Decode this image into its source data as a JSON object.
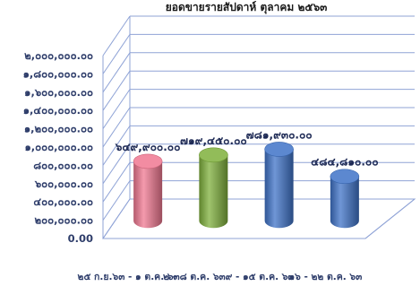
{
  "chart_data": {
    "type": "bar",
    "title": "ยอดขายรายสัปดาห์ ตุลาคม ๒๕๖๓",
    "categories": [
      "๒๕ ก.ย.๖๓ - ๑ ต.ค. ๖๓",
      "๒ - ๘ ต.ค. ๖๓",
      "๙ - ๑๕ ต.ค. ๖๓",
      "๑๖ - ๒๒ ต.ค. ๖๓"
    ],
    "values": [
      649900,
      719450,
      781930,
      484810
    ],
    "value_labels": [
      "๖๔๙,๙๐๐.๐๐",
      "๗๑๙,๔๕๐.๐๐",
      "๗๘๑,๙๓๐.๐๐",
      "๔๘๔,๘๑๐.๐๐"
    ],
    "bar_colors": [
      "#f07891",
      "#7fb03c",
      "#3f73c8",
      "#3f73c8"
    ],
    "ylim": [
      0,
      2000000
    ],
    "yticks": [
      0,
      200000,
      400000,
      600000,
      800000,
      1000000,
      1200000,
      1400000,
      1600000,
      1800000,
      2000000
    ],
    "ytick_labels": [
      "0.00",
      "๒๐๐,๐๐๐.๐๐",
      "๔๐๐,๐๐๐.๐๐",
      "๖๐๐,๐๐๐.๐๐",
      "๘๐๐,๐๐๐.๐๐",
      "๑,๐๐๐,๐๐๐.๐๐",
      "๑,๒๐๐,๐๐๐.๐๐",
      "๑,๔๐๐,๐๐๐.๐๐",
      "๑,๖๐๐,๐๐๐.๐๐",
      "๑,๘๐๐,๐๐๐.๐๐",
      "๒,๐๐๐,๐๐๐.๐๐"
    ],
    "xlabel": "",
    "ylabel": "",
    "grid": true,
    "legend": "none",
    "style": "3d-cylinder"
  }
}
